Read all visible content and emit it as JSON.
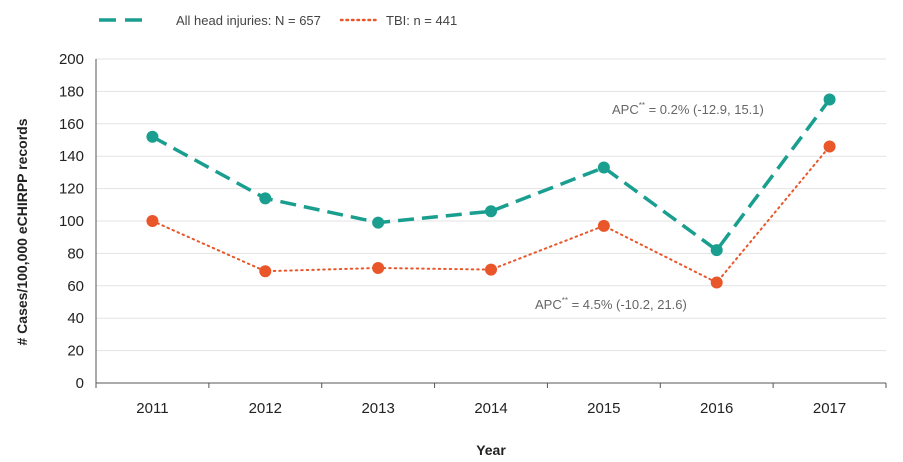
{
  "chart_data": {
    "type": "line",
    "xlabel": "Year",
    "ylabel": "# Cases/100,000 eCHIRPP records",
    "ylim": [
      0,
      200
    ],
    "yticks": [
      0,
      20,
      40,
      60,
      80,
      100,
      120,
      140,
      160,
      180,
      200
    ],
    "categories": [
      "2011",
      "2012",
      "2013",
      "2014",
      "2015",
      "2016",
      "2017"
    ],
    "grid": "horizontal",
    "legend_position": "top-left",
    "series": [
      {
        "name": "All head injuries: N = 657",
        "color": "#1a9e8f",
        "line_style": "dashed",
        "values": [
          152,
          114,
          99,
          106,
          133,
          82,
          175
        ],
        "annotation": {
          "prefix": "APC",
          "sup": "**",
          "suffix": " = 0.2% (-12.9, 15.1)"
        }
      },
      {
        "name": "TBI: n = 441",
        "color": "#e8562a",
        "line_style": "dotted",
        "values": [
          100,
          69,
          71,
          70,
          97,
          62,
          146
        ],
        "annotation": {
          "prefix": "APC",
          "sup": "**",
          "suffix": " = 4.5% (-10.2, 21.6)"
        }
      }
    ]
  }
}
